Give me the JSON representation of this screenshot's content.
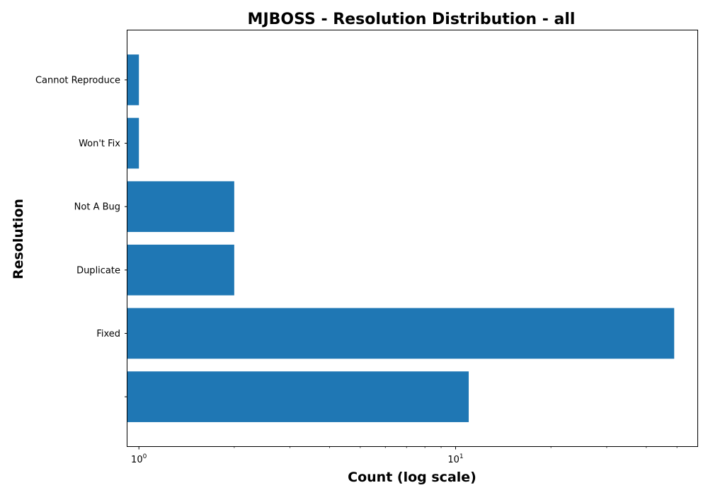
{
  "chart_data": {
    "type": "bar",
    "orientation": "horizontal",
    "title": "MJBOSS - Resolution Distribution - all",
    "xlabel": "Count (log scale)",
    "ylabel": "Resolution",
    "x_scale": "log",
    "xlim": [
      0.92,
      58
    ],
    "categories": [
      "",
      "Fixed",
      "Duplicate",
      "Not A Bug",
      "Won't Fix",
      "Cannot Reproduce"
    ],
    "values": [
      11,
      49,
      2,
      2,
      1,
      1
    ],
    "x_ticks": [
      {
        "value": 1,
        "base": "10",
        "exp": "0"
      },
      {
        "value": 10,
        "base": "10",
        "exp": "1"
      }
    ],
    "bar_color": "#1f77b4",
    "grid": false
  }
}
